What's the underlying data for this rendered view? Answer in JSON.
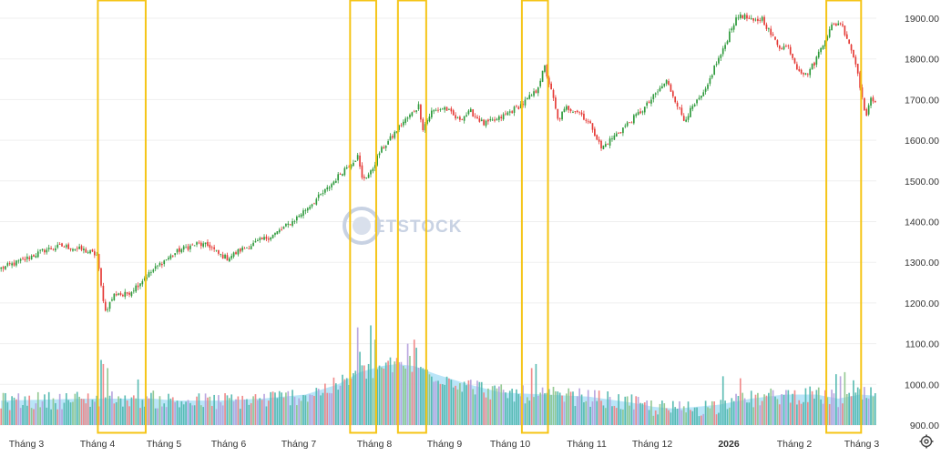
{
  "chart_data": {
    "type": "candlestick",
    "ylim": [
      880,
      1920
    ],
    "yticks": [
      "1900.00",
      "1800.00",
      "1700.00",
      "1600.00",
      "1500.00",
      "1400.00",
      "1300.00",
      "1200.00",
      "1100.00",
      "1000.00",
      "900.00"
    ],
    "yticks_values": [
      1900,
      1800,
      1700,
      1600,
      1500,
      1400,
      1300,
      1200,
      1100,
      1000,
      900
    ],
    "xtick_labels": [
      "Tháng 3",
      "Tháng 4",
      "Tháng 5",
      "Tháng 6",
      "Tháng 7",
      "Tháng 8",
      "Tháng 9",
      "Tháng 10",
      "Tháng 11",
      "Tháng 12",
      "2026",
      "Tháng 2",
      "Tháng 3"
    ],
    "xtick_bold": [
      false,
      false,
      false,
      false,
      false,
      false,
      false,
      false,
      false,
      false,
      true,
      false,
      false
    ],
    "grid": true,
    "watermark": "ETSTOCK",
    "colors": {
      "up": "#2e9a3c",
      "down": "#e53935",
      "vol_up": "#8bc48a",
      "vol_down": "#f08080",
      "vol_teal": "#4db6ac",
      "vol_purple": "#b39ddb",
      "ma_fill": "#aee0f7",
      "highlight": "#f5c518"
    },
    "price_waypoints": [
      [
        0,
        1285
      ],
      [
        10,
        1305
      ],
      [
        20,
        1330
      ],
      [
        28,
        1340
      ],
      [
        38,
        1330
      ],
      [
        44,
        1318
      ],
      [
        46,
        1240
      ],
      [
        48,
        1180
      ],
      [
        50,
        1200
      ],
      [
        52,
        1220
      ],
      [
        54,
        1225
      ],
      [
        56,
        1218
      ],
      [
        60,
        1230
      ],
      [
        66,
        1262
      ],
      [
        74,
        1300
      ],
      [
        82,
        1330
      ],
      [
        90,
        1345
      ],
      [
        96,
        1340
      ],
      [
        100,
        1320
      ],
      [
        104,
        1310
      ],
      [
        110,
        1330
      ],
      [
        118,
        1350
      ],
      [
        126,
        1370
      ],
      [
        134,
        1400
      ],
      [
        142,
        1440
      ],
      [
        150,
        1480
      ],
      [
        158,
        1530
      ],
      [
        164,
        1560
      ],
      [
        166,
        1505
      ],
      [
        170,
        1520
      ],
      [
        174,
        1570
      ],
      [
        180,
        1610
      ],
      [
        184,
        1640
      ],
      [
        188,
        1660
      ],
      [
        192,
        1685
      ],
      [
        194,
        1630
      ],
      [
        198,
        1670
      ],
      [
        204,
        1680
      ],
      [
        210,
        1650
      ],
      [
        216,
        1670
      ],
      [
        222,
        1640
      ],
      [
        228,
        1650
      ],
      [
        234,
        1670
      ],
      [
        240,
        1690
      ],
      [
        246,
        1720
      ],
      [
        250,
        1780
      ],
      [
        254,
        1700
      ],
      [
        256,
        1650
      ],
      [
        260,
        1680
      ],
      [
        266,
        1670
      ],
      [
        272,
        1630
      ],
      [
        276,
        1580
      ],
      [
        282,
        1610
      ],
      [
        288,
        1640
      ],
      [
        296,
        1680
      ],
      [
        302,
        1720
      ],
      [
        306,
        1745
      ],
      [
        310,
        1700
      ],
      [
        314,
        1650
      ],
      [
        318,
        1680
      ],
      [
        324,
        1720
      ],
      [
        328,
        1780
      ],
      [
        332,
        1820
      ],
      [
        336,
        1880
      ],
      [
        340,
        1910
      ],
      [
        346,
        1890
      ],
      [
        350,
        1900
      ],
      [
        354,
        1860
      ],
      [
        358,
        1830
      ],
      [
        362,
        1830
      ],
      [
        366,
        1780
      ],
      [
        370,
        1760
      ],
      [
        374,
        1790
      ],
      [
        378,
        1840
      ],
      [
        382,
        1880
      ],
      [
        386,
        1890
      ],
      [
        390,
        1840
      ],
      [
        394,
        1770
      ],
      [
        396,
        1700
      ],
      [
        398,
        1660
      ],
      [
        400,
        1700
      ],
      [
        402,
        1700
      ]
    ],
    "bars": 403,
    "volume_waypoints": [
      [
        0,
        960
      ],
      [
        40,
        965
      ],
      [
        60,
        965
      ],
      [
        70,
        965
      ],
      [
        80,
        960
      ],
      [
        100,
        960
      ],
      [
        120,
        965
      ],
      [
        140,
        975
      ],
      [
        155,
        1000
      ],
      [
        165,
        1030
      ],
      [
        175,
        1045
      ],
      [
        182,
        1050
      ],
      [
        190,
        1045
      ],
      [
        200,
        1025
      ],
      [
        215,
        1000
      ],
      [
        230,
        980
      ],
      [
        250,
        975
      ],
      [
        270,
        970
      ],
      [
        290,
        955
      ],
      [
        300,
        945
      ],
      [
        310,
        940
      ],
      [
        330,
        950
      ],
      [
        345,
        965
      ],
      [
        360,
        975
      ],
      [
        375,
        975
      ],
      [
        385,
        965
      ],
      [
        395,
        975
      ],
      [
        402,
        972
      ]
    ],
    "highlight_bar_ranges": [
      [
        45,
        66
      ],
      [
        161,
        172
      ],
      [
        183,
        195
      ],
      [
        240,
        251
      ],
      [
        380,
        395
      ]
    ]
  },
  "icons": {
    "settings": "gear-icon"
  }
}
